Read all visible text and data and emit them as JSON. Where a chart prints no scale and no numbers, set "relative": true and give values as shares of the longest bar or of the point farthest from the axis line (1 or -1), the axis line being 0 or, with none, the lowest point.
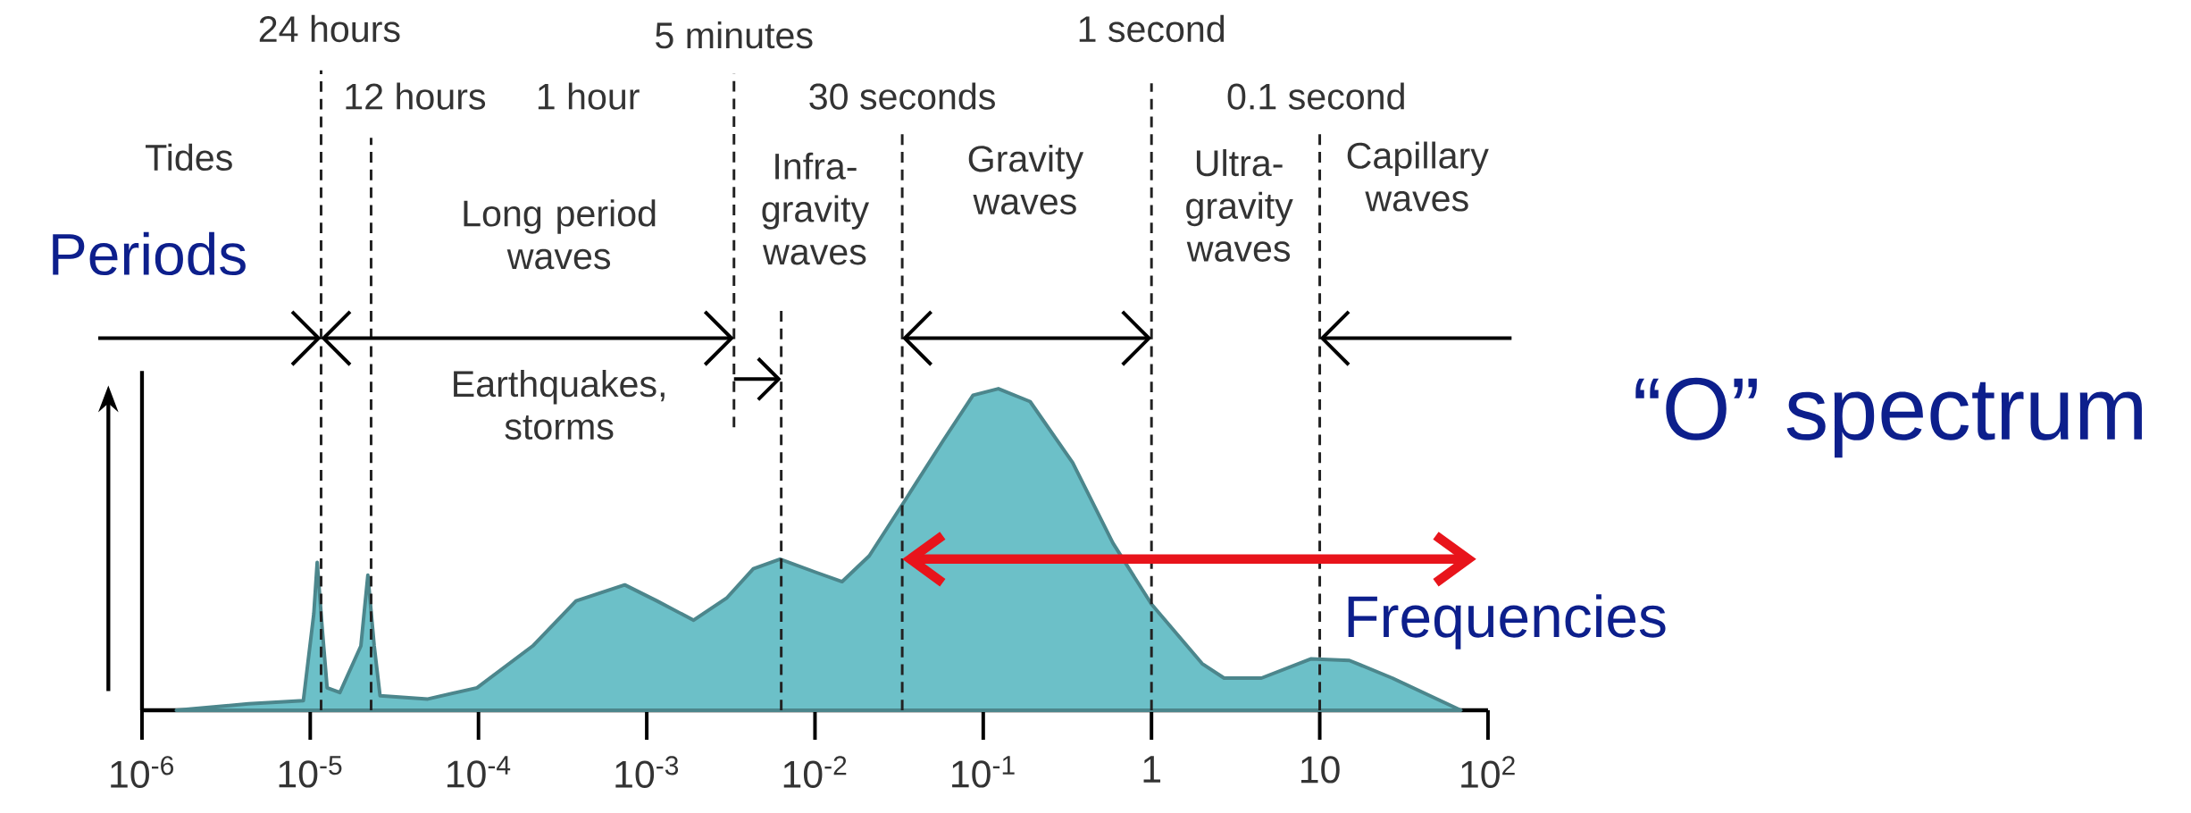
{
  "chart_data": {
    "type": "area",
    "relative": true,
    "log": "x",
    "color": "#6cc0c8",
    "x": [
      1.6e-06,
      4.3e-06,
      9.1e-06,
      1.05e-05,
      1.1e-05,
      1.18e-05,
      1.26e-05,
      1.5e-05,
      2e-05,
      2.2e-05,
      2.4e-05,
      2.6e-05,
      5e-05,
      9.8e-05,
      0.00021,
      0.00038,
      0.00074,
      0.00115,
      0.0019,
      0.003,
      0.0043,
      0.0062,
      0.01,
      0.0145,
      0.021,
      0.035,
      0.058,
      0.087,
      0.123,
      0.19,
      0.34,
      0.59,
      1,
      2.0,
      2.7,
      4.5,
      8.9,
      15,
      27,
      69
    ],
    "values": [
      0,
      0.02,
      0.03,
      0.3,
      0.46,
      0.25,
      0.07,
      0.055,
      0.2,
      0.42,
      0.2,
      0.045,
      0.035,
      0.07,
      0.2,
      0.34,
      0.39,
      0.34,
      0.28,
      0.35,
      0.44,
      0.47,
      0.43,
      0.4,
      0.48,
      0.66,
      0.84,
      0.98,
      1,
      0.96,
      0.77,
      0.52,
      0.33,
      0.145,
      0.1,
      0.1,
      0.16,
      0.155,
      0.1,
      0
    ],
    "xlim": [
      1e-06,
      100
    ],
    "xticks": [
      {
        "value": 1e-06,
        "label": "10$^{-6}$"
      },
      {
        "value": 1e-05,
        "label": "10$^{-5}$"
      },
      {
        "value": 0.0001,
        "label": "10$^{-4}$"
      },
      {
        "value": 0.001,
        "label": "10$^{-3}$"
      },
      {
        "value": 0.01,
        "label": "10$^{-2}$"
      },
      {
        "value": 0.1,
        "label": "10$^{-1}$"
      },
      1,
      10,
      {
        "value": 100,
        "label": "10$^{2}$"
      }
    ],
    "ref_lines": [
      {
        "axis": "x",
        "value": 1.16e-05,
        "label": "24 hours",
        "line_style": "dashed",
        "color": "#222222"
      },
      {
        "axis": "x",
        "value": 2.3e-05,
        "label": "12 hours",
        "line_style": "dashed",
        "color": "#222222"
      },
      {
        "axis": "x",
        "value": 0.0033,
        "label": "5 minutes",
        "line_style": "dashed",
        "color": "#222222"
      },
      {
        "axis": "x",
        "value": 0.0063,
        "line_style": "dashed",
        "color": "#222222"
      },
      {
        "axis": "x",
        "value": 0.033,
        "label": "30 seconds",
        "line_style": "dashed",
        "color": "#222222"
      },
      {
        "axis": "x",
        "value": 1,
        "label": "1 second",
        "line_style": "dashed",
        "color": "#222222"
      },
      {
        "axis": "x",
        "value": 10,
        "label": "0.1 second",
        "line_style": "dashed",
        "color": "#222222"
      }
    ],
    "annotations": [
      "Periods",
      "Frequencies",
      "“O” spectrum",
      "Tides",
      "1 hour",
      "Long period waves",
      "Earthquakes, storms",
      "Infra-gravity waves",
      "Gravity waves",
      "Ultra-gravity waves",
      "Capillary waves"
    ]
  }
}
